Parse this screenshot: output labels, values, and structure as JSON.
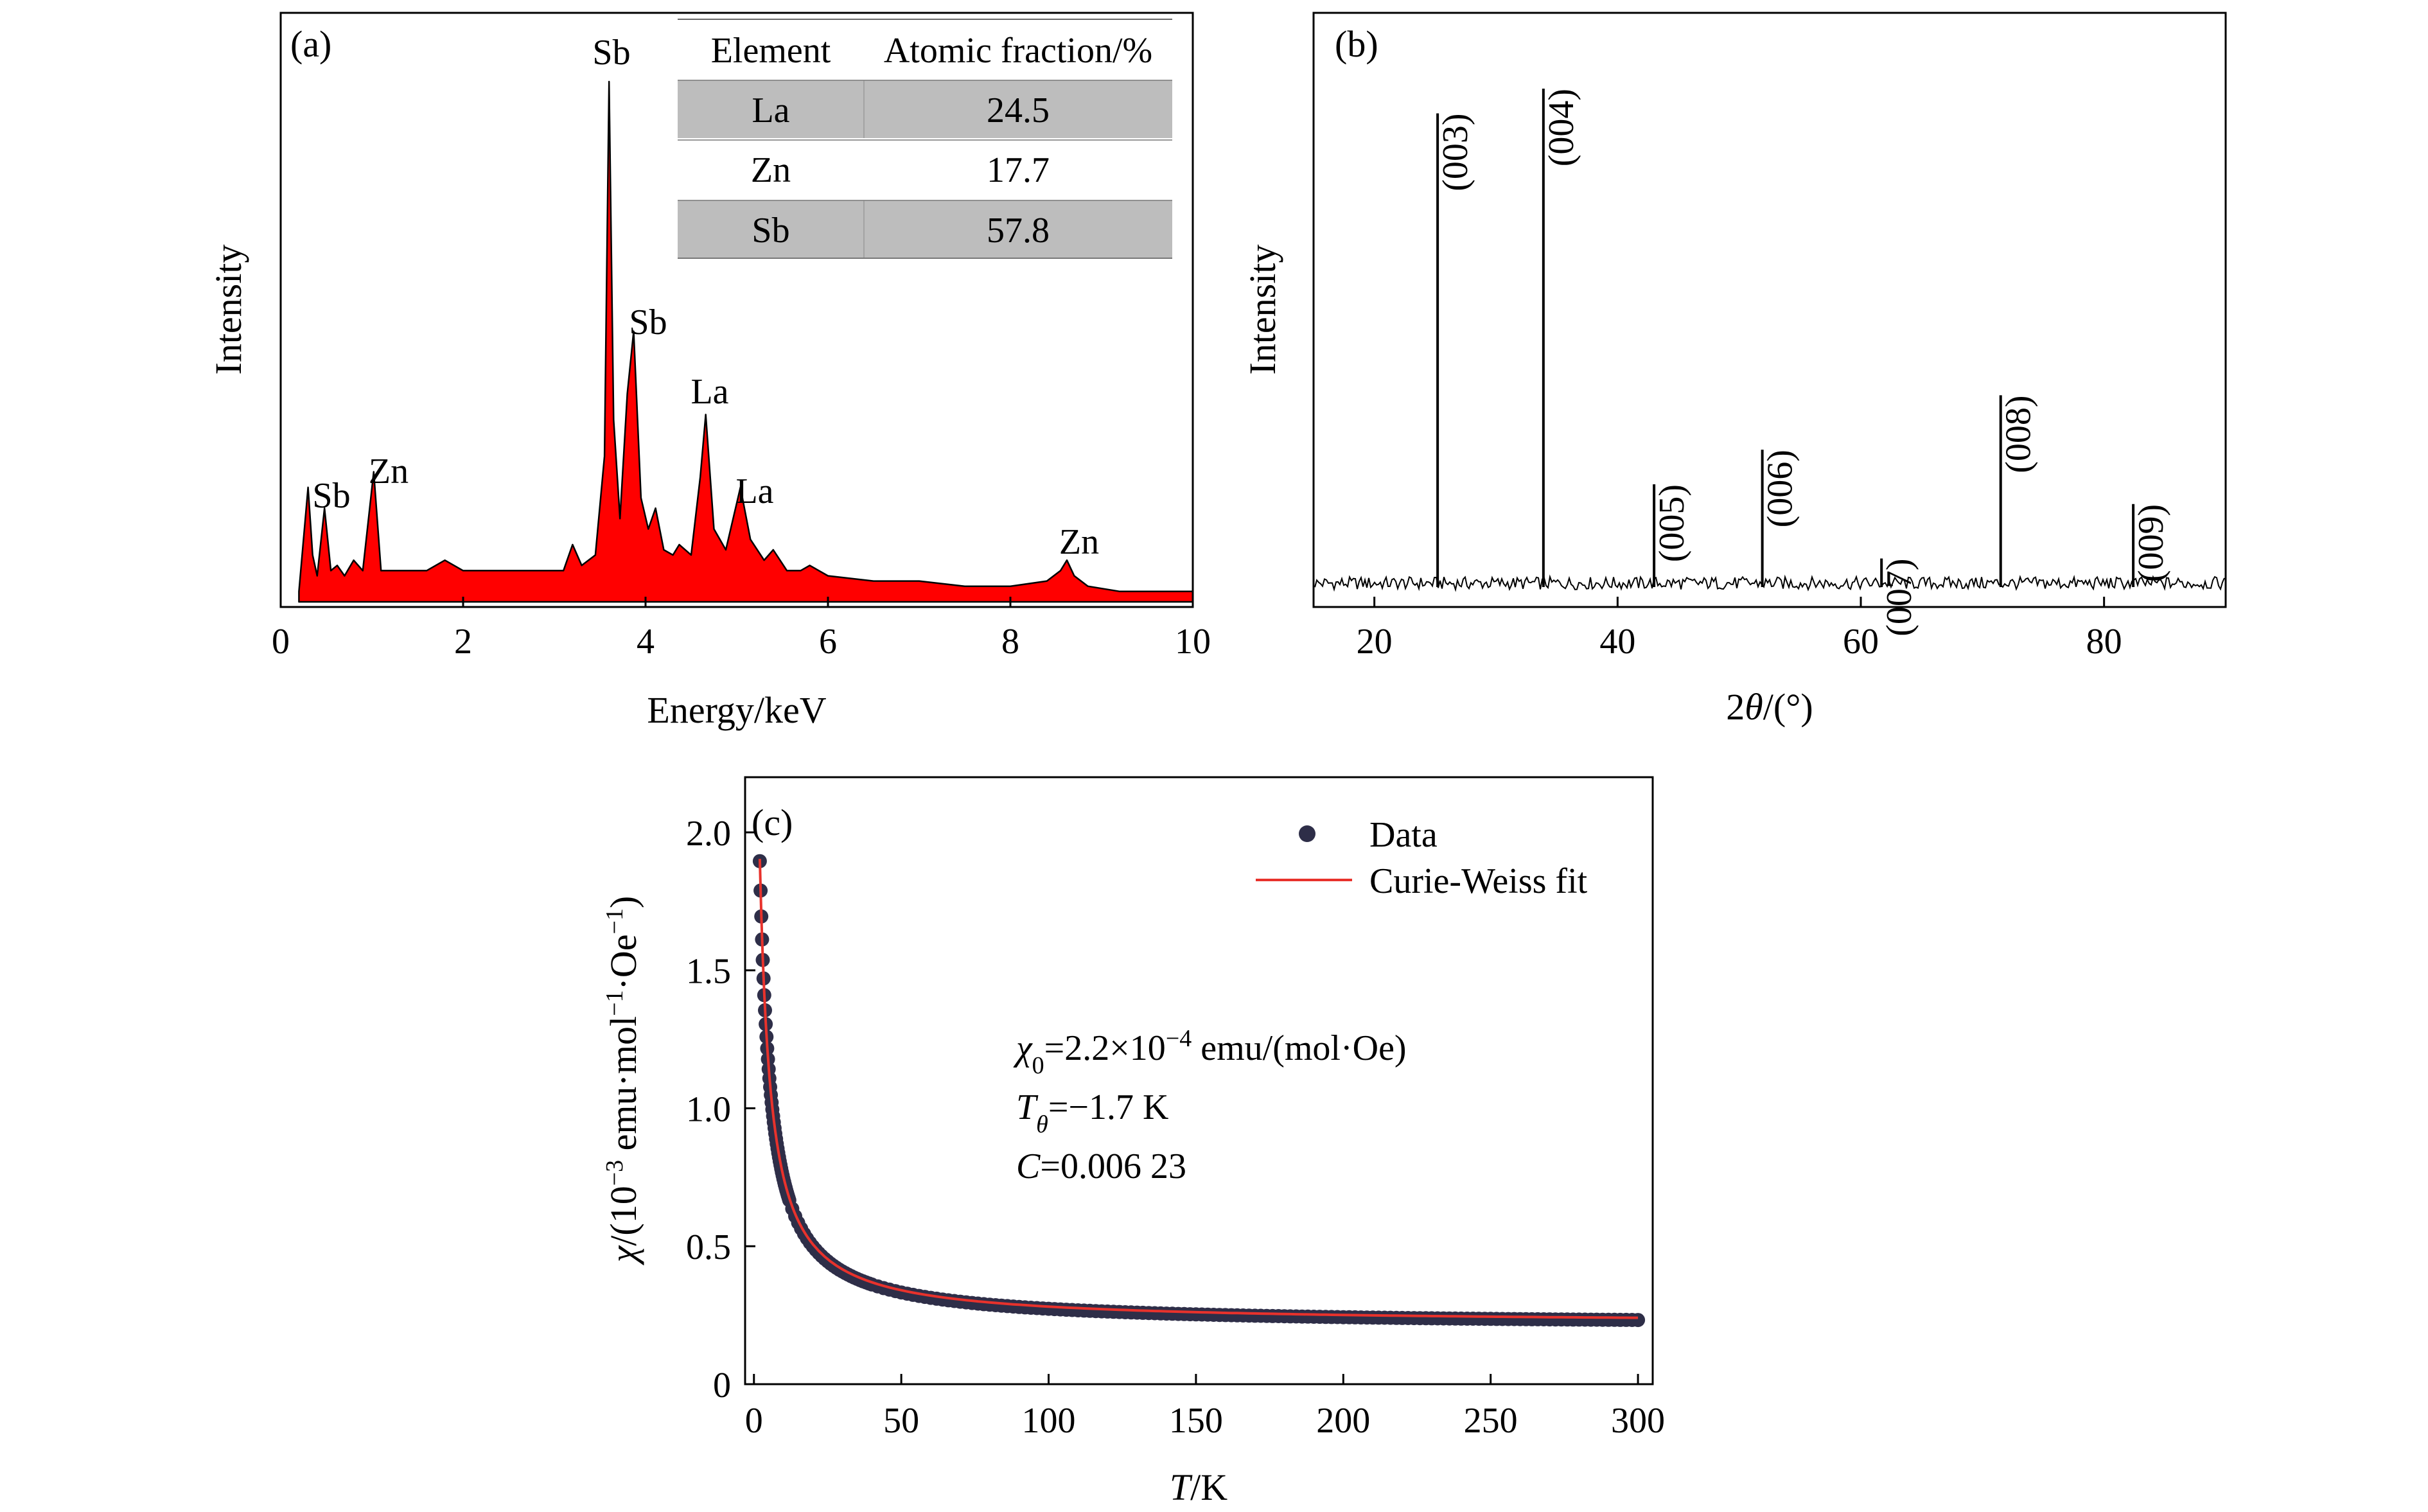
{
  "chart_data": [
    {
      "type": "line",
      "panel_label": "(a)",
      "title": "",
      "xlabel": "Energy/keV",
      "ylabel": "Intensity",
      "xlim": [
        0,
        10
      ],
      "xticks": [
        "0",
        "2",
        "4",
        "6",
        "8",
        "10"
      ],
      "fill_color": "#ff0000",
      "grid": false,
      "x": [
        0.2,
        0.3,
        0.35,
        0.4,
        0.48,
        0.55,
        0.62,
        0.7,
        0.8,
        0.9,
        1.02,
        1.1,
        1.2,
        1.4,
        1.6,
        1.8,
        2.0,
        2.3,
        2.6,
        2.9,
        3.1,
        3.2,
        3.3,
        3.45,
        3.55,
        3.6,
        3.65,
        3.72,
        3.8,
        3.87,
        3.95,
        4.03,
        4.11,
        4.2,
        4.3,
        4.37,
        4.5,
        4.6,
        4.66,
        4.75,
        4.88,
        5.04,
        5.15,
        5.3,
        5.4,
        5.55,
        5.7,
        5.8,
        6.0,
        6.5,
        7.0,
        7.5,
        8.0,
        8.4,
        8.55,
        8.62,
        8.7,
        8.85,
        9.2,
        9.6,
        10.0
      ],
      "y": [
        0.02,
        0.22,
        0.09,
        0.05,
        0.18,
        0.06,
        0.07,
        0.05,
        0.08,
        0.06,
        0.25,
        0.06,
        0.06,
        0.06,
        0.06,
        0.08,
        0.06,
        0.06,
        0.06,
        0.06,
        0.06,
        0.11,
        0.07,
        0.09,
        0.28,
        1.0,
        0.35,
        0.16,
        0.4,
        0.52,
        0.2,
        0.14,
        0.18,
        0.1,
        0.09,
        0.11,
        0.09,
        0.24,
        0.36,
        0.14,
        0.1,
        0.22,
        0.12,
        0.08,
        0.1,
        0.06,
        0.06,
        0.07,
        0.05,
        0.04,
        0.04,
        0.03,
        0.03,
        0.04,
        0.06,
        0.08,
        0.05,
        0.03,
        0.02,
        0.02,
        0.02
      ],
      "annotations": [
        {
          "text": "Sb",
          "x": 3.65,
          "y": 1.0
        },
        {
          "text": "Sb",
          "x": 4.05,
          "y": 0.52
        },
        {
          "text": "La",
          "x": 4.7,
          "y": 0.36
        },
        {
          "text": "La",
          "x": 5.15,
          "y": 0.22
        },
        {
          "text": "Sb",
          "x": 0.55,
          "y": 0.22
        },
        {
          "text": "Zn",
          "x": 1.18,
          "y": 0.25
        },
        {
          "text": "Zn",
          "x": 8.75,
          "y": 0.08
        }
      ],
      "inset_table": {
        "headers": [
          "Element",
          "Atomic fraction/%"
        ],
        "rows": [
          [
            "La",
            "24.5"
          ],
          [
            "Zn",
            "17.7"
          ],
          [
            "Sb",
            "57.8"
          ]
        ],
        "shade_color": "#bdbdbd"
      }
    },
    {
      "type": "line",
      "panel_label": "(b)",
      "title": "",
      "xlabel": "2θ/(°)",
      "xlabel_parts": [
        "2",
        "θ",
        "/(°)"
      ],
      "ylabel": "Intensity",
      "xlim": [
        15,
        90
      ],
      "xticks": [
        "20",
        "40",
        "60",
        "80"
      ],
      "line_color": "#000000",
      "grid": false,
      "baseline": 0.03,
      "peaks": [
        {
          "label": "(003)",
          "x": 25.2,
          "y": 0.95
        },
        {
          "label": "(004)",
          "x": 33.9,
          "y": 1.0
        },
        {
          "label": "(005)",
          "x": 43.0,
          "y": 0.2
        },
        {
          "label": "(006)",
          "x": 51.9,
          "y": 0.27
        },
        {
          "label": "(007)",
          "x": 61.7,
          "y": 0.05
        },
        {
          "label": "(008)",
          "x": 71.5,
          "y": 0.38
        },
        {
          "label": "(009)",
          "x": 82.4,
          "y": 0.16
        }
      ]
    },
    {
      "type": "scatter",
      "panel_label": "(c)",
      "title": "",
      "xlabel": "T/K",
      "xlabel_parts": [
        "T",
        "/K"
      ],
      "ylabel": "χ/(10⁻³ emu·mol⁻¹·Oe⁻¹)",
      "ylabel_parts": [
        "χ",
        "/(10",
        "−3",
        " emu·mol",
        "−1",
        "·Oe",
        "−1",
        ")"
      ],
      "xlim": [
        -3,
        305
      ],
      "ylim": [
        0,
        2.2
      ],
      "xticks": [
        "0",
        "50",
        "100",
        "150",
        "200",
        "250",
        "300"
      ],
      "yticks": [
        "0",
        "0.5",
        "1.0",
        "1.5",
        "2.0"
      ],
      "legend": {
        "position": "top-right",
        "entries": [
          {
            "label": "Data",
            "kind": "marker",
            "color": "#2e2e48"
          },
          {
            "label": "Curie-Weiss fit",
            "kind": "line",
            "color": "#e8322c"
          }
        ]
      },
      "fit": {
        "model": "chi = chi0 + C/(T - T_theta)",
        "chi0_emu": 0.00022,
        "T_theta": -1.7,
        "C": 0.00623
      },
      "x_range": [
        2,
        300
      ],
      "annotation_lines": [
        {
          "parts": [
            "χ",
            "0",
            "=2.2×10",
            "−4",
            " emu/(mol·Oe)"
          ]
        },
        {
          "parts": [
            "T",
            "θ",
            "=−1.7 K"
          ]
        },
        {
          "parts": [
            "C",
            "=0.006 23"
          ]
        }
      ]
    }
  ]
}
